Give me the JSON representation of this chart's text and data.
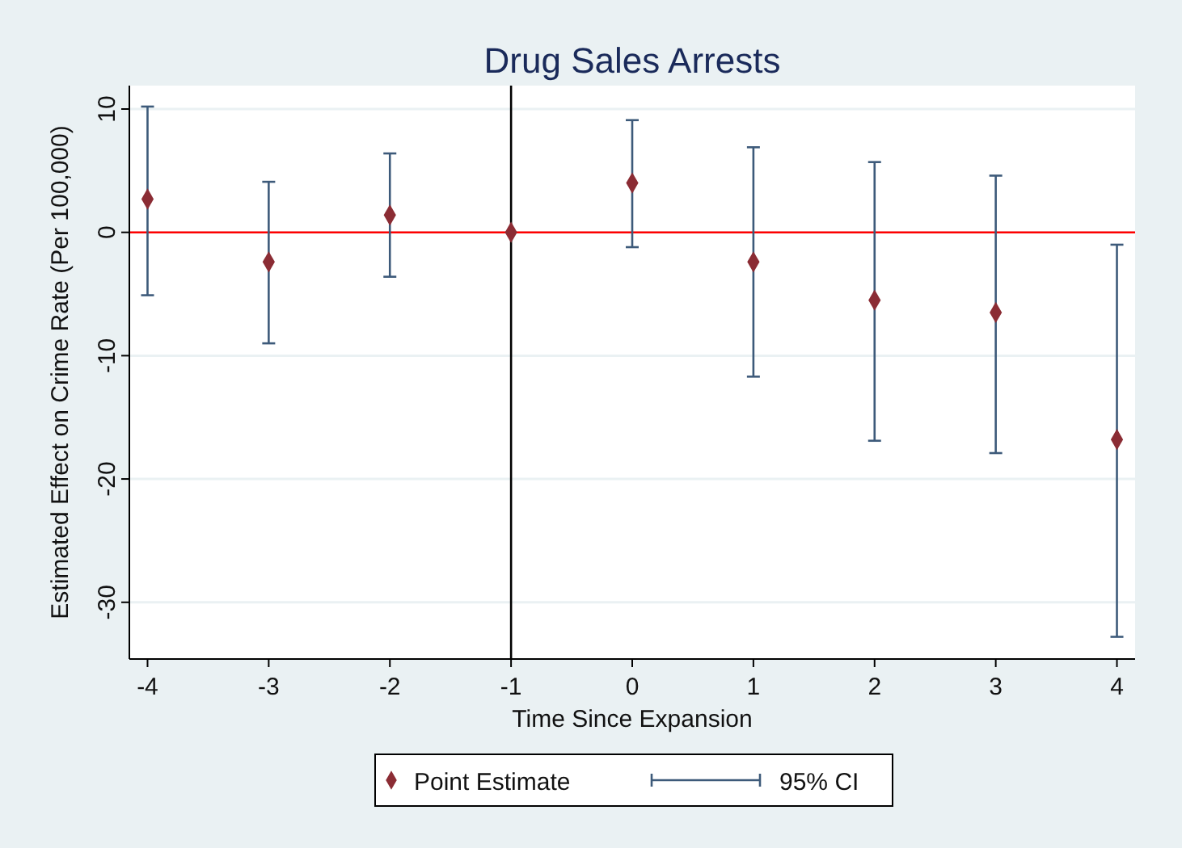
{
  "chart_data": {
    "type": "scatter",
    "title": "Drug Sales Arrests",
    "xlabel": "Time Since Expansion",
    "ylabel": "Estimated Effect on Crime Rate (Per 100,000)",
    "x": [
      -4,
      -3,
      -2,
      -1,
      0,
      1,
      2,
      3,
      4
    ],
    "series": [
      {
        "name": "Point Estimate",
        "color": "#8b2c34",
        "values": [
          2.7,
          -2.4,
          1.4,
          0,
          4.0,
          -2.4,
          -5.5,
          -6.5,
          -16.8
        ],
        "errors": [
          [
            -5.1,
            10.2
          ],
          [
            -9.0,
            4.1
          ],
          [
            -3.6,
            6.4
          ],
          null,
          [
            -1.2,
            9.1
          ],
          [
            -11.7,
            6.9
          ],
          [
            -16.9,
            5.7
          ],
          [
            -17.9,
            4.6
          ],
          [
            -32.8,
            -1.0
          ]
        ]
      }
    ],
    "annotations": [
      "95% CI"
    ],
    "xlim": [
      -4.15,
      4.15
    ],
    "ylim": [
      -34.6,
      11.9
    ],
    "xticks": [
      -4,
      -3,
      -2,
      -1,
      0,
      1,
      2,
      3,
      4
    ],
    "yticks": [
      -30,
      -20,
      -10,
      0,
      10
    ],
    "ref_lines": [
      {
        "axis": "y",
        "value": 0,
        "color": "#ff0000"
      },
      {
        "axis": "x",
        "value": -1,
        "color": "#000000"
      }
    ],
    "grid": "y",
    "legend": "bottom",
    "marker": "diamond"
  }
}
